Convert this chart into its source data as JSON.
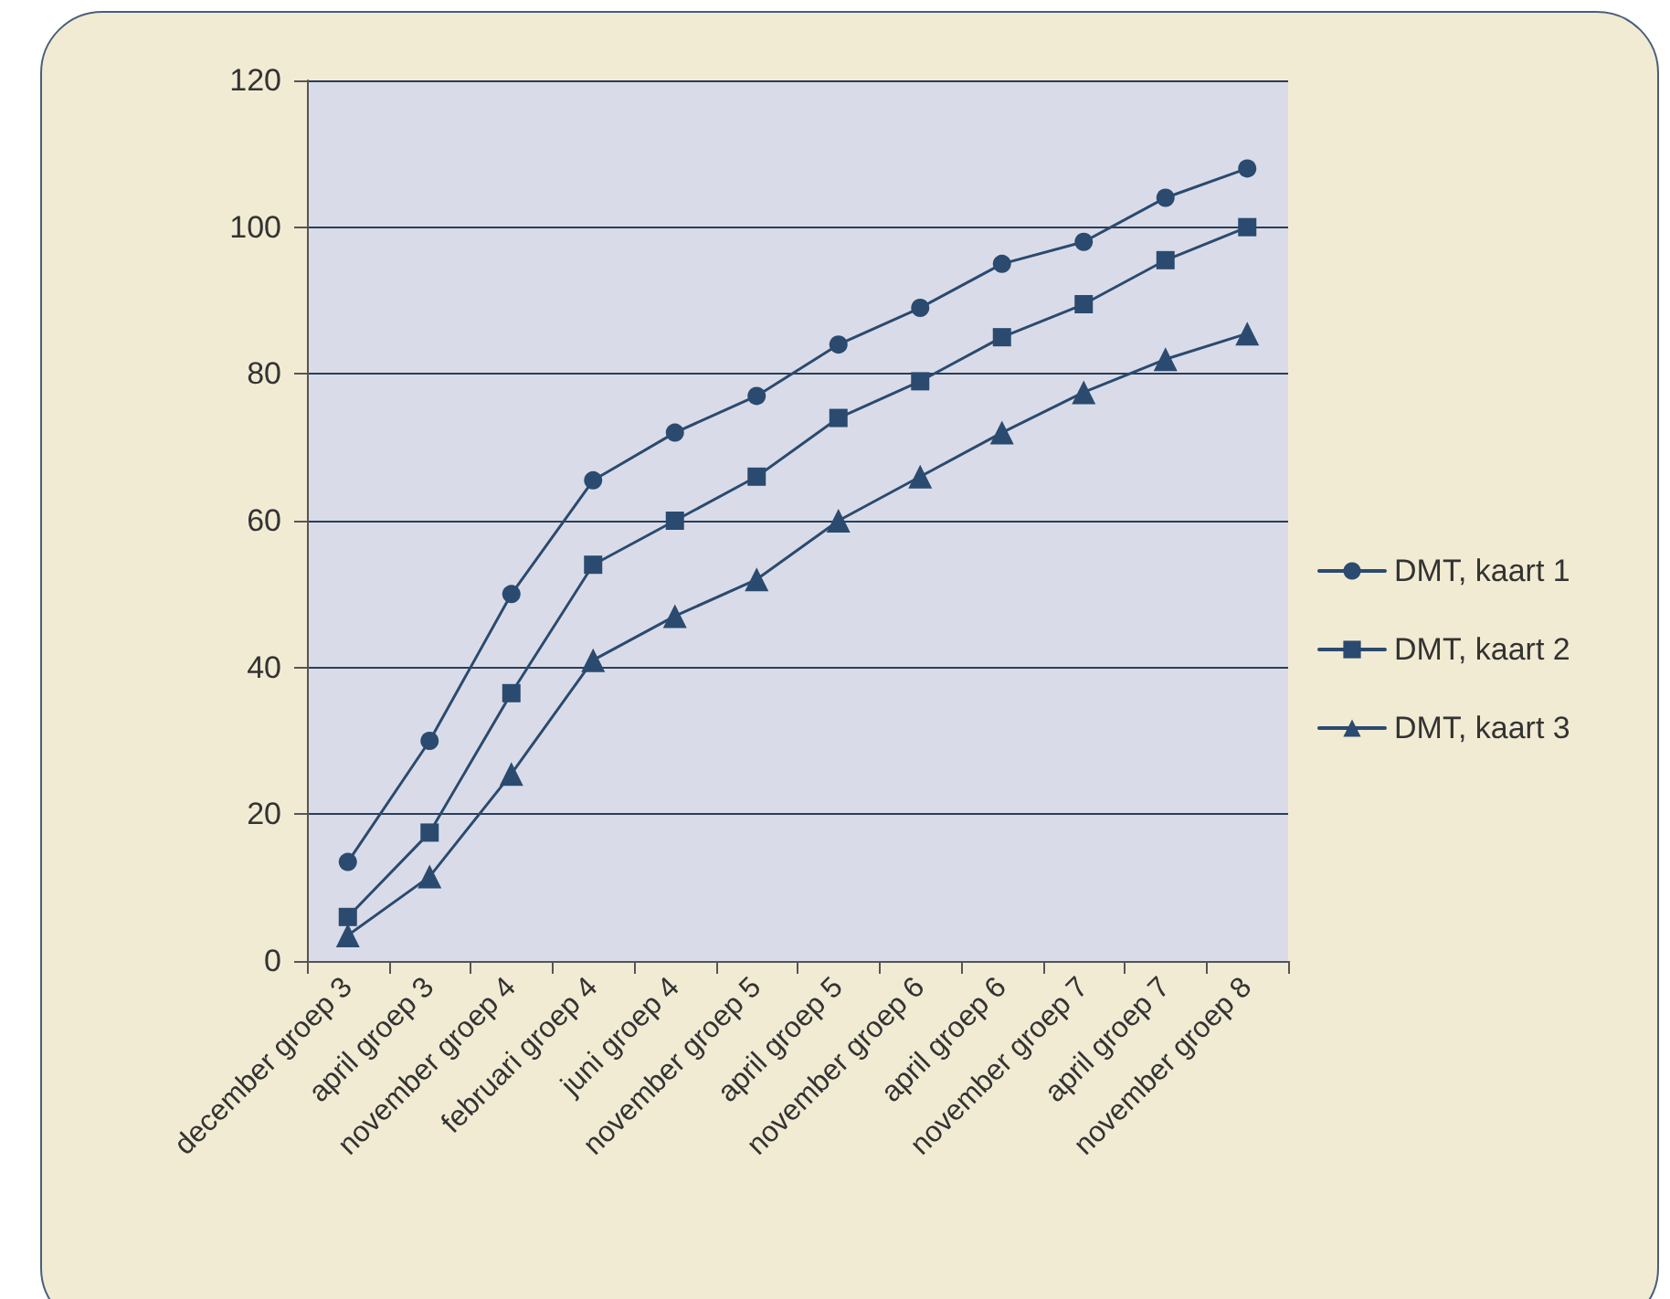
{
  "chart_data": {
    "type": "line",
    "categories": [
      "december groep 3",
      "april groep 3",
      "november groep 4",
      "februari groep 4",
      "juni groep 4",
      "november groep 5",
      "april groep 5",
      "november groep 6",
      "april groep 6",
      "november groep 7",
      "april groep 7",
      "november groep 8"
    ],
    "series": [
      {
        "name": "DMT, kaart 1",
        "color": "#2b4a6f",
        "marker": "circle",
        "values": [
          13.5,
          30,
          50,
          65.5,
          72,
          77,
          84,
          89,
          95,
          98,
          104,
          108
        ]
      },
      {
        "name": "DMT, kaart 2",
        "color": "#2b4a6f",
        "marker": "square",
        "values": [
          6,
          17.5,
          36.5,
          54,
          60,
          66,
          74,
          79,
          85,
          89.5,
          95.5,
          100
        ]
      },
      {
        "name": "DMT, kaart 3",
        "color": "#2b4a6f",
        "marker": "triangle",
        "values": [
          3.5,
          11.5,
          25.5,
          41,
          47,
          52,
          60,
          66,
          72,
          77.5,
          82,
          85.5
        ]
      }
    ],
    "ylim": [
      0,
      120
    ],
    "yticks": [
      0,
      20,
      40,
      60,
      80,
      100,
      120
    ],
    "grid": "y",
    "legend": "right",
    "line_style": "solid"
  }
}
